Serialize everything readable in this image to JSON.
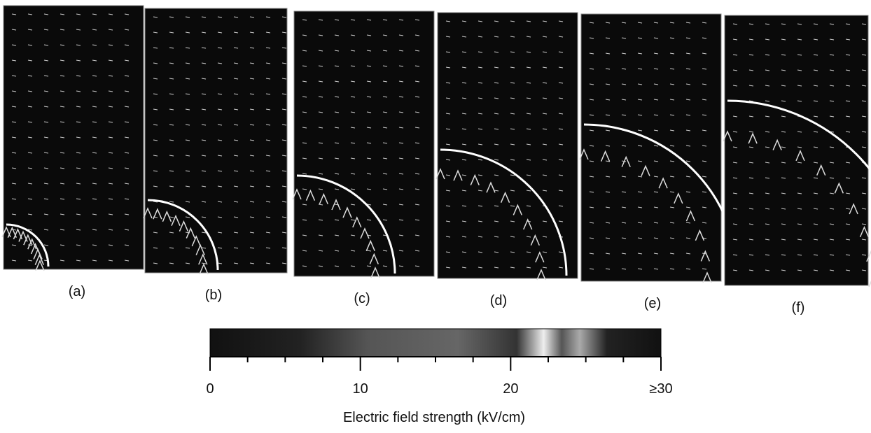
{
  "panels": [
    {
      "label": "(a)"
    },
    {
      "label": "(b)"
    },
    {
      "label": "(c)"
    },
    {
      "label": "(d)"
    },
    {
      "label": "(e)"
    },
    {
      "label": "(f)"
    }
  ],
  "colorbar": {
    "label": "Electric field strength (kV/cm)",
    "lim": [
      0,
      30
    ],
    "ticks": [
      0,
      10,
      20,
      {
        "value": 30,
        "label": "≥30"
      }
    ],
    "minor_ticks": [
      2.5,
      5,
      7.5,
      12.5,
      15,
      17.5,
      22.5,
      25,
      27.5
    ]
  }
}
